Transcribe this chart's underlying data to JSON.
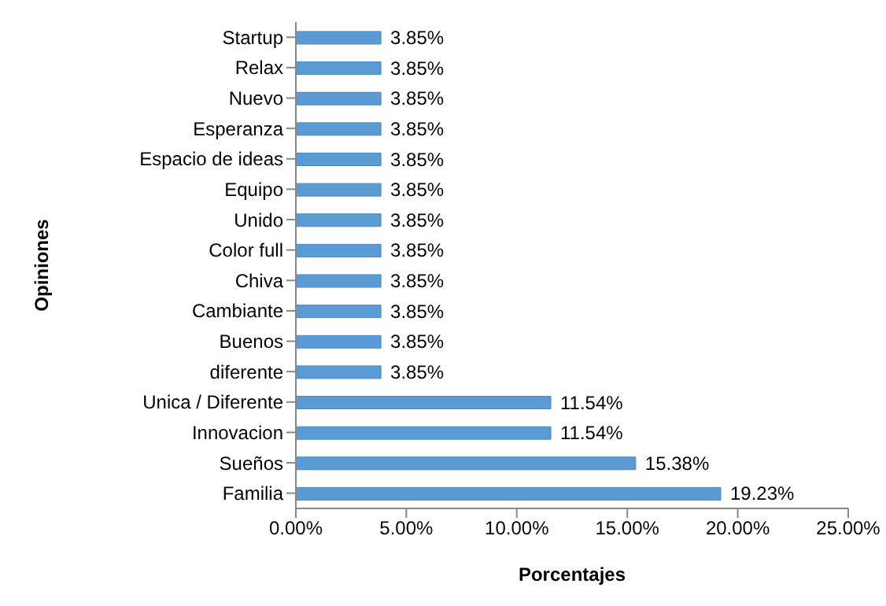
{
  "chart_data": {
    "type": "bar",
    "orientation": "horizontal",
    "xlabel": "Porcentajes",
    "ylabel": "Opiniones",
    "categories": [
      "Startup",
      "Relax",
      "Nuevo",
      "Esperanza",
      "Espacio de ideas",
      "Equipo",
      "Unido",
      "Color full",
      "Chiva",
      "Cambiante",
      "Buenos",
      "diferente",
      "Unica / Diferente",
      "Innovacion",
      "Sueños",
      "Familia"
    ],
    "values": [
      3.85,
      3.85,
      3.85,
      3.85,
      3.85,
      3.85,
      3.85,
      3.85,
      3.85,
      3.85,
      3.85,
      3.85,
      11.54,
      11.54,
      15.38,
      19.23
    ],
    "value_labels": [
      "3.85%",
      "3.85%",
      "3.85%",
      "3.85%",
      "3.85%",
      "3.85%",
      "3.85%",
      "3.85%",
      "3.85%",
      "3.85%",
      "3.85%",
      "3.85%",
      "11.54%",
      "11.54%",
      "15.38%",
      "19.23%"
    ],
    "color": "#5b9bd5",
    "xlim": [
      0,
      25
    ],
    "xticks": [
      {
        "value": 0,
        "label": "0.00%"
      },
      {
        "value": 5,
        "label": "5.00%"
      },
      {
        "value": 10,
        "label": "10.00%"
      },
      {
        "value": 15,
        "label": "15.00%"
      },
      {
        "value": 20,
        "label": "20.00%"
      },
      {
        "value": 25,
        "label": "25.00%"
      }
    ],
    "grid": false,
    "legend": false
  }
}
